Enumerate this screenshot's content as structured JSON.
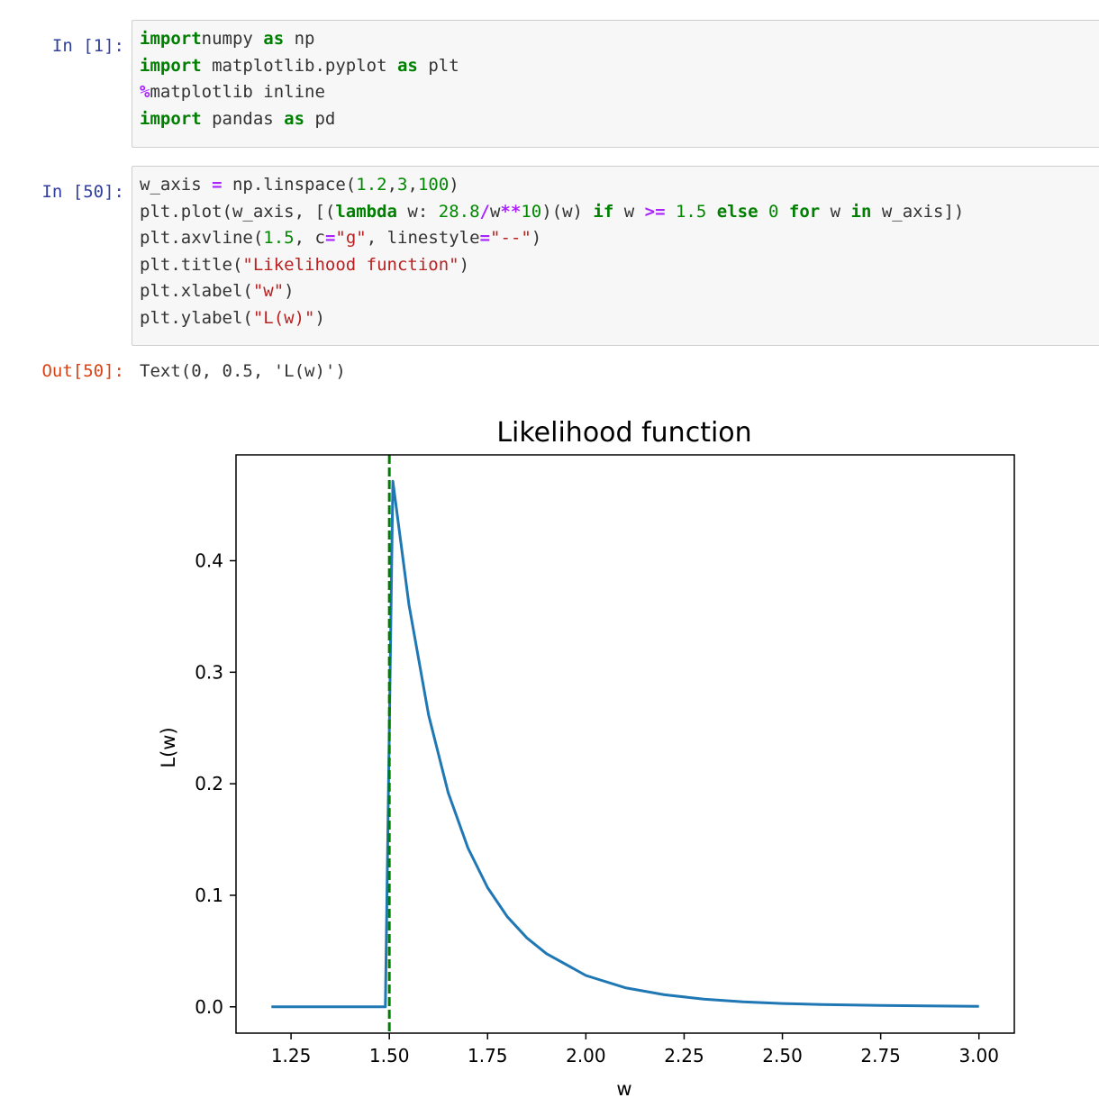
{
  "cells": [
    {
      "prompt": "In  [1]:",
      "lines": [
        [
          [
            "kw",
            "import"
          ],
          [
            "",
            "numpy "
          ],
          [
            "kw",
            "as"
          ],
          [
            "",
            " np"
          ]
        ],
        [
          [
            "kw",
            "import"
          ],
          [
            "",
            " matplotlib.pyplot "
          ],
          [
            "kw",
            "as"
          ],
          [
            "",
            " plt"
          ]
        ],
        [
          [
            "op",
            "%"
          ],
          [
            "",
            "matplotlib inline"
          ]
        ],
        [
          [
            "kw",
            "import"
          ],
          [
            "",
            " pandas "
          ],
          [
            "kw",
            "as"
          ],
          [
            "",
            " pd"
          ]
        ]
      ]
    },
    {
      "prompt": "In  [50]:",
      "lines": [
        [
          [
            "",
            "w_axis "
          ],
          [
            "op",
            "="
          ],
          [
            "",
            " np.linspace("
          ],
          [
            "num",
            "1.2"
          ],
          [
            "",
            ","
          ],
          [
            "num",
            "3"
          ],
          [
            "",
            ","
          ],
          [
            "num",
            "100"
          ],
          [
            "",
            ")"
          ]
        ],
        [
          [
            "",
            "plt.plot(w_axis, [("
          ],
          [
            "kw",
            "lambda"
          ],
          [
            "",
            " w: "
          ],
          [
            "num",
            "28.8"
          ],
          [
            "op",
            "/"
          ],
          [
            "",
            "w"
          ],
          [
            "op",
            "**"
          ],
          [
            "num",
            "10"
          ],
          [
            "",
            ")(w) "
          ],
          [
            "kw",
            "if"
          ],
          [
            "",
            " w "
          ],
          [
            "op",
            ">="
          ],
          [
            "",
            " "
          ],
          [
            "num",
            "1.5"
          ],
          [
            "",
            " "
          ],
          [
            "kw",
            "else"
          ],
          [
            "",
            " "
          ],
          [
            "num",
            "0"
          ],
          [
            "",
            " "
          ],
          [
            "kw",
            "for"
          ],
          [
            "",
            " w "
          ],
          [
            "kw",
            "in"
          ],
          [
            "",
            " w_axis])"
          ]
        ],
        [
          [
            "",
            "plt.axvline("
          ],
          [
            "num",
            "1.5"
          ],
          [
            "",
            ", c"
          ],
          [
            "op",
            "="
          ],
          [
            "str",
            "\"g\""
          ],
          [
            "",
            ", linestyle"
          ],
          [
            "op",
            "="
          ],
          [
            "str",
            "\"--\""
          ],
          [
            "",
            ")"
          ]
        ],
        [
          [
            "",
            "plt.title("
          ],
          [
            "str",
            "\"Likelihood function\""
          ],
          [
            "",
            ")"
          ]
        ],
        [
          [
            "",
            "plt.xlabel("
          ],
          [
            "str",
            "\"w\""
          ],
          [
            "",
            ")"
          ]
        ],
        [
          [
            "",
            "plt.ylabel("
          ],
          [
            "str",
            "\"L(w)\""
          ],
          [
            "",
            ")"
          ]
        ]
      ]
    }
  ],
  "output": {
    "prompt": "Out[50]:",
    "text": "Text(0, 0.5, 'L(w)')"
  },
  "chart_data": {
    "type": "line",
    "title": "Likelihood function",
    "xlabel": "w",
    "ylabel": "L(w)",
    "xlim": [
      1.11,
      3.09
    ],
    "ylim": [
      -0.0236,
      0.4949
    ],
    "xticks": [
      "1.25",
      "1.50",
      "1.75",
      "2.00",
      "2.25",
      "2.50",
      "2.75",
      "3.00"
    ],
    "yticks": [
      "0.0",
      "0.1",
      "0.2",
      "0.3",
      "0.4"
    ],
    "series": [
      {
        "color": "#1f77b4",
        "x": [
          1.2,
          1.49,
          1.509,
          1.55,
          1.6,
          1.65,
          1.7,
          1.75,
          1.8,
          1.85,
          1.9,
          2.0,
          2.1,
          2.2,
          2.3,
          2.4,
          2.5,
          2.6,
          2.75,
          2.9,
          3.0
        ],
        "y": [
          0,
          0,
          0.4713,
          0.3604,
          0.2616,
          0.1919,
          0.1424,
          0.1068,
          0.0808,
          0.0618,
          0.0476,
          0.0281,
          0.0171,
          0.0108,
          0.0069,
          0.0045,
          0.003,
          0.0021,
          0.0012,
          0.0007,
          0.0005
        ]
      }
    ],
    "vline": {
      "x": 1.5,
      "color": "#008000",
      "style": "dashed"
    },
    "grid": false
  }
}
